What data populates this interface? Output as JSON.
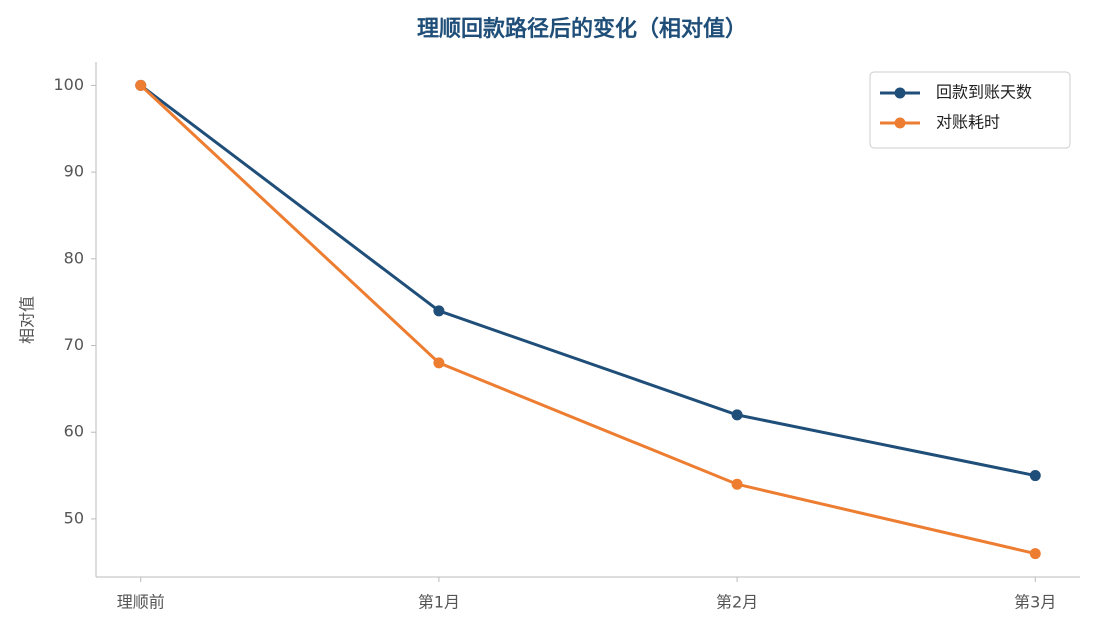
{
  "chart_data": {
    "type": "line",
    "title": "理顺回款路径后的变化（相对值）",
    "y_label": "相对值",
    "categories": [
      "理顺前",
      "第1月",
      "第2月",
      "第3月"
    ],
    "series": [
      {
        "name": "回款到账天数",
        "color": "#1f4e79",
        "values": [
          100,
          74,
          62,
          55
        ]
      },
      {
        "name": "对账耗时",
        "color": "#ed7d31",
        "values": [
          100,
          68,
          54,
          46
        ]
      }
    ],
    "ylim": [
      43.3,
      102.7
    ],
    "yticks": [
      50,
      60,
      70,
      80,
      90,
      100
    ],
    "grid": false,
    "legend": "upper right"
  }
}
